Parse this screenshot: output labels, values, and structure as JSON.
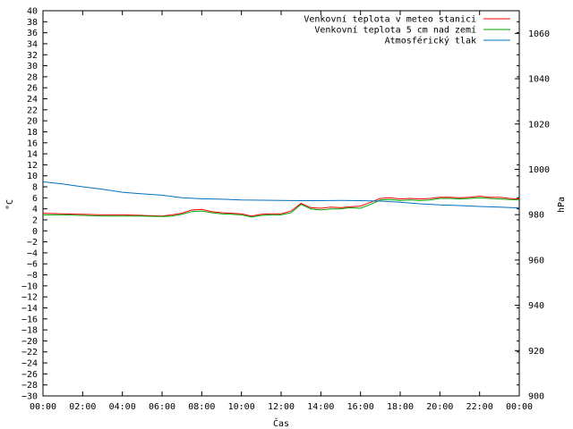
{
  "chart_data": {
    "type": "line",
    "xlabel": "Čas",
    "ylabel": "°C",
    "y2label": "hPa",
    "x_ticks": [
      "00:00",
      "02:00",
      "04:00",
      "06:00",
      "08:00",
      "10:00",
      "12:00",
      "14:00",
      "16:00",
      "18:00",
      "20:00",
      "22:00",
      "00:00"
    ],
    "xlim": [
      0,
      24
    ],
    "ylim": [
      -30,
      40
    ],
    "y_step": 2,
    "y2lim": [
      900,
      1070
    ],
    "y2_step": 20,
    "grid": false,
    "legend_position": "top-right",
    "series": [
      {
        "name": "Venkovní teplota v meteo stanici",
        "axis": "left",
        "color": "#ff0000",
        "x": [
          0,
          1,
          2,
          3,
          4,
          5,
          6,
          6.5,
          7,
          7.5,
          8,
          8.5,
          9,
          9.5,
          10,
          10.5,
          11,
          11.5,
          12,
          12.5,
          13,
          13.5,
          14,
          14.5,
          15,
          15.5,
          16,
          16.5,
          17,
          17.5,
          18,
          18.5,
          19,
          19.5,
          20,
          20.5,
          21,
          21.5,
          22,
          22.5,
          23,
          23.5,
          24
        ],
        "y": [
          3.2,
          3.1,
          3.0,
          2.9,
          2.9,
          2.8,
          2.7,
          2.9,
          3.2,
          3.8,
          3.9,
          3.5,
          3.3,
          3.2,
          3.1,
          2.7,
          3.0,
          3.1,
          3.1,
          3.6,
          5.0,
          4.2,
          4.1,
          4.3,
          4.2,
          4.4,
          4.5,
          5.2,
          5.9,
          6.0,
          5.8,
          5.9,
          5.8,
          5.9,
          6.1,
          6.1,
          6.0,
          6.1,
          6.3,
          6.1,
          6.1,
          5.9,
          5.8
        ]
      },
      {
        "name": "Venkovní teplota 5 cm nad zemí",
        "axis": "left",
        "color": "#00a000",
        "x": [
          0,
          1,
          2,
          3,
          4,
          5,
          6,
          6.5,
          7,
          7.5,
          8,
          8.5,
          9,
          9.5,
          10,
          10.5,
          11,
          11.5,
          12,
          12.5,
          13,
          13.5,
          14,
          14.5,
          15,
          15.5,
          16,
          16.5,
          17,
          17.5,
          18,
          18.5,
          19,
          19.5,
          20,
          20.5,
          21,
          21.5,
          22,
          22.5,
          23,
          23.5,
          24
        ],
        "y": [
          2.9,
          2.9,
          2.8,
          2.7,
          2.7,
          2.7,
          2.6,
          2.7,
          3.0,
          3.5,
          3.6,
          3.3,
          3.1,
          3.0,
          2.9,
          2.5,
          2.8,
          2.9,
          2.9,
          3.3,
          4.8,
          4.0,
          3.8,
          4.0,
          4.0,
          4.2,
          4.1,
          4.8,
          5.6,
          5.7,
          5.5,
          5.6,
          5.5,
          5.6,
          5.9,
          5.9,
          5.8,
          5.9,
          6.0,
          5.9,
          5.8,
          5.7,
          5.6
        ]
      },
      {
        "name": "Atmosférický tlak",
        "axis": "right",
        "color": "#0070c0",
        "x": [
          0,
          1,
          2,
          3,
          4,
          5,
          6,
          7,
          8,
          9,
          10,
          11,
          12,
          13,
          14,
          15,
          16,
          17,
          18,
          19,
          20,
          21,
          22,
          23,
          24
        ],
        "y": [
          994.5,
          993.5,
          992.3,
          991.2,
          989.9,
          989.2,
          988.6,
          987.5,
          987.0,
          986.8,
          986.5,
          986.4,
          986.3,
          986.2,
          986.2,
          986.3,
          986.2,
          986.0,
          985.5,
          984.8,
          984.3,
          984.0,
          983.6,
          983.3,
          983.0
        ]
      }
    ]
  }
}
